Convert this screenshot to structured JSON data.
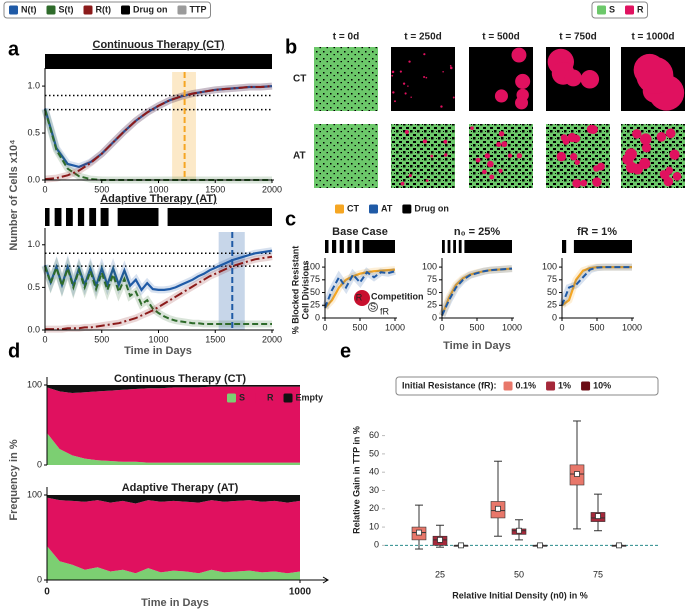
{
  "chart_data": [
    {
      "type": "line",
      "label": "a",
      "title": "Continuous Therapy (CT)",
      "ylabel": "Number of Cells x10⁴",
      "x": [
        0,
        100,
        200,
        300,
        400,
        500,
        600,
        700,
        800,
        900,
        1000,
        1100,
        1200,
        1300,
        1400,
        1500,
        1600,
        1700,
        1800,
        1900,
        2000
      ],
      "series": [
        {
          "name": "N(t)",
          "color": "#1f5aa6",
          "values": [
            0.76,
            0.34,
            0.17,
            0.14,
            0.19,
            0.28,
            0.4,
            0.52,
            0.63,
            0.72,
            0.79,
            0.85,
            0.89,
            0.92,
            0.94,
            0.96,
            0.97,
            0.98,
            0.99,
            0.99,
            1.0
          ]
        },
        {
          "name": "S(t)",
          "color": "#2e6b2a",
          "values": [
            0.75,
            0.32,
            0.12,
            0.04,
            0.01,
            0,
            0,
            0,
            0,
            0,
            0,
            0,
            0,
            0,
            0,
            0,
            0,
            0,
            0,
            0,
            0
          ]
        },
        {
          "name": "R(t)",
          "color": "#8b1a1a",
          "values": [
            0.01,
            0.02,
            0.05,
            0.1,
            0.18,
            0.28,
            0.4,
            0.52,
            0.63,
            0.72,
            0.79,
            0.85,
            0.89,
            0.92,
            0.94,
            0.96,
            0.97,
            0.98,
            0.99,
            0.99,
            1.0
          ]
        }
      ],
      "legend_extra": [
        {
          "name": "Drug on",
          "color": "#000000"
        },
        {
          "name": "TTP",
          "color": "#9a9a9a"
        }
      ],
      "drug_on": [
        [
          0,
          2000
        ]
      ],
      "hlines": [
        0.9,
        0.75
      ],
      "ttp": 1230,
      "ttp_band": [
        1120,
        1330
      ],
      "ttp_color": "#f5a623",
      "xlim": [
        0,
        2000
      ],
      "ylim": [
        0,
        1.15
      ],
      "xticks": [
        0,
        500,
        1000,
        1500,
        2000
      ],
      "yticks": [
        {
          "value": 0,
          "label": "0.0"
        },
        {
          "value": 0.5,
          "label": "0.5"
        },
        {
          "value": 1,
          "label": "1.0"
        }
      ]
    },
    {
      "type": "line",
      "title": "Adaptive Therapy (AT)",
      "xlabel": "Time in Days",
      "x": [
        0,
        50,
        100,
        150,
        200,
        250,
        300,
        350,
        400,
        450,
        500,
        550,
        600,
        650,
        700,
        750,
        800,
        850,
        900,
        950,
        1000,
        1050,
        1100,
        1150,
        1200,
        1250,
        1300,
        1350,
        1400,
        1450,
        1500,
        1550,
        1600,
        1650,
        1700,
        1750,
        1800,
        1850,
        1900,
        1950,
        2000
      ],
      "series": [
        {
          "color": "#1f5aa6",
          "values": [
            0.76,
            0.56,
            0.74,
            0.53,
            0.74,
            0.52,
            0.72,
            0.53,
            0.72,
            0.52,
            0.72,
            0.53,
            0.72,
            0.53,
            0.7,
            0.52,
            0.59,
            0.47,
            0.55,
            0.48,
            0.47,
            0.47,
            0.48,
            0.5,
            0.53,
            0.56,
            0.59,
            0.63,
            0.66,
            0.7,
            0.73,
            0.76,
            0.79,
            0.82,
            0.84,
            0.86,
            0.88,
            0.9,
            0.91,
            0.92,
            0.93
          ]
        },
        {
          "color": "#2e6b2a",
          "values": [
            0.75,
            0.55,
            0.73,
            0.52,
            0.72,
            0.5,
            0.7,
            0.5,
            0.69,
            0.48,
            0.67,
            0.47,
            0.65,
            0.45,
            0.6,
            0.4,
            0.45,
            0.3,
            0.35,
            0.25,
            0.2,
            0.16,
            0.13,
            0.11,
            0.1,
            0.09,
            0.08,
            0.08,
            0.07,
            0.07,
            0.07,
            0.07,
            0.07,
            0.07,
            0.07,
            0.07,
            0.07,
            0.07,
            0.07,
            0.07,
            0.07
          ]
        },
        {
          "color": "#8b1a1a",
          "values": [
            0.01,
            0.01,
            0.01,
            0.01,
            0.02,
            0.02,
            0.02,
            0.03,
            0.03,
            0.04,
            0.05,
            0.06,
            0.07,
            0.08,
            0.1,
            0.12,
            0.14,
            0.17,
            0.2,
            0.23,
            0.27,
            0.31,
            0.35,
            0.39,
            0.43,
            0.47,
            0.51,
            0.55,
            0.59,
            0.63,
            0.66,
            0.69,
            0.72,
            0.75,
            0.77,
            0.79,
            0.81,
            0.83,
            0.84,
            0.85,
            0.86
          ]
        }
      ],
      "drug_on": [
        [
          0,
          40
        ],
        [
          85,
          145
        ],
        [
          185,
          245
        ],
        [
          290,
          345
        ],
        [
          390,
          450
        ],
        [
          490,
          560
        ],
        [
          640,
          1000
        ],
        [
          1080,
          2000
        ]
      ],
      "hlines": [
        0.9,
        0.75
      ],
      "ttp": 1650,
      "ttp_band": [
        1530,
        1760
      ],
      "ttp_color": "#1f5aa6",
      "xlim": [
        0,
        2000
      ],
      "ylim": [
        0,
        1.15
      ],
      "xticks": [
        0,
        500,
        1000,
        1500,
        2000
      ],
      "yticks": [
        {
          "value": 0,
          "label": "0.0"
        },
        {
          "value": 0.5,
          "label": "0.5"
        },
        {
          "value": 1,
          "label": "1.0"
        }
      ]
    },
    {
      "type": "image-grid",
      "label": "b",
      "columns": [
        "t = 0d",
        "t = 250d",
        "t = 500d",
        "t = 750d",
        "t = 1000d"
      ],
      "rows": [
        "CT",
        "AT"
      ],
      "legend": [
        {
          "name": "S",
          "color": "#6cc86a"
        },
        {
          "name": "R",
          "color": "#e0115f"
        }
      ]
    },
    {
      "type": "line",
      "label": "c",
      "title": "Base Case",
      "ylabel": [
        "% Blocked Resistant",
        "Cell Divisions"
      ],
      "inset": {
        "text": "Competition",
        "cells": [
          "R",
          "S"
        ],
        "arrow": "fR"
      },
      "x": [
        0,
        100,
        200,
        300,
        400,
        500,
        600,
        700,
        800,
        900,
        1000
      ],
      "series": [
        {
          "name": "CT",
          "color": "#f5a623",
          "values": [
            20,
            35,
            60,
            75,
            82,
            87,
            90,
            92,
            93,
            94,
            95
          ]
        },
        {
          "name": "AT",
          "color": "#1f5aa6",
          "values": [
            20,
            55,
            80,
            60,
            85,
            70,
            90,
            80,
            90,
            88,
            92
          ]
        }
      ],
      "legend_extra": [
        {
          "name": "Drug on",
          "color": "#000000"
        }
      ],
      "drug_on": [
        [
          0,
          50
        ],
        [
          100,
          160
        ],
        [
          210,
          270
        ],
        [
          320,
          380
        ],
        [
          430,
          490
        ],
        [
          540,
          1000
        ]
      ],
      "xlim": [
        0,
        1000
      ],
      "ylim": [
        0,
        110
      ],
      "xticks": [
        0,
        500,
        1000
      ],
      "yticks": [
        0,
        25,
        50,
        75,
        100
      ]
    },
    {
      "type": "line",
      "title": "n₀ = 25%",
      "xlabel": "Time in Days",
      "x": [
        0,
        100,
        200,
        300,
        400,
        500,
        600,
        700,
        800,
        900,
        1000
      ],
      "series": [
        {
          "color": "#f5a623",
          "values": [
            5,
            40,
            65,
            78,
            85,
            89,
            92,
            94,
            95,
            96,
            97
          ]
        },
        {
          "color": "#1f5aa6",
          "values": [
            5,
            35,
            60,
            75,
            84,
            88,
            92,
            94,
            95,
            96,
            97
          ]
        }
      ],
      "drug_on": [
        [
          0,
          40
        ],
        [
          80,
          120
        ],
        [
          160,
          200
        ],
        [
          240,
          280
        ],
        [
          320,
          1000
        ]
      ],
      "xlim": [
        0,
        1000
      ],
      "ylim": [
        0,
        110
      ],
      "xticks": [
        0,
        500,
        1000
      ],
      "yticks": [
        0,
        25,
        50,
        75,
        100
      ]
    },
    {
      "type": "line",
      "title": "fR = 1%",
      "x": [
        0,
        100,
        200,
        300,
        400,
        500,
        600,
        700,
        800,
        900,
        1000
      ],
      "series": [
        {
          "color": "#f5a623",
          "values": [
            25,
            35,
            75,
            93,
            98,
            100,
            100,
            100,
            100,
            100,
            100
          ]
        },
        {
          "color": "#1f5aa6",
          "values": [
            25,
            60,
            65,
            80,
            95,
            99,
            100,
            100,
            100,
            100,
            100
          ]
        }
      ],
      "drug_on": [
        [
          0,
          60
        ],
        [
          170,
          1000
        ]
      ],
      "xlim": [
        0,
        1000
      ],
      "ylim": [
        0,
        110
      ],
      "xticks": [
        0,
        500,
        1000
      ],
      "yticks": [
        0,
        25,
        50,
        75,
        100
      ]
    },
    {
      "type": "stacked-area",
      "label": "d",
      "title": "Continuous Therapy (CT)",
      "ylabel": "Frequency in %",
      "x": [
        0,
        50,
        100,
        150,
        200,
        250,
        300,
        350,
        400,
        450,
        500,
        550,
        600,
        650,
        700,
        750,
        800,
        850,
        900,
        950,
        1000
      ],
      "series": [
        {
          "name": "S",
          "color": "#7ccf72",
          "values": [
            40,
            20,
            12,
            8,
            6,
            5,
            4,
            4,
            3,
            3,
            3,
            3,
            3,
            3,
            3,
            3,
            3,
            3,
            3,
            3,
            3
          ]
        },
        {
          "name": "R",
          "color": "#e0115f",
          "values": [
            57,
            72,
            78,
            83,
            86,
            88,
            90,
            91,
            93,
            93,
            94,
            94,
            94,
            95,
            95,
            95,
            95,
            95,
            95,
            95,
            95
          ]
        },
        {
          "name": "Empty",
          "color": "#111111",
          "values": [
            3,
            8,
            10,
            9,
            8,
            7,
            6,
            5,
            4,
            4,
            3,
            3,
            3,
            2,
            2,
            2,
            2,
            2,
            2,
            2,
            2
          ]
        }
      ],
      "xlim": [
        0,
        1000
      ],
      "ylim": [
        0,
        100
      ],
      "yticks": [
        0,
        100
      ]
    },
    {
      "type": "stacked-area",
      "title": "Adaptive Therapy (AT)",
      "xlabel": "Time in Days",
      "x": [
        0,
        50,
        100,
        150,
        200,
        250,
        300,
        350,
        400,
        450,
        500,
        550,
        600,
        650,
        700,
        750,
        800,
        850,
        900,
        950,
        1000
      ],
      "series": [
        {
          "color": "#7ccf72",
          "values": [
            40,
            22,
            18,
            12,
            15,
            10,
            12,
            8,
            14,
            9,
            11,
            10,
            8,
            12,
            9,
            10,
            11,
            9,
            10,
            8,
            10
          ]
        },
        {
          "color": "#e0115f",
          "values": [
            57,
            72,
            75,
            80,
            79,
            81,
            81,
            82,
            80,
            83,
            82,
            82,
            83,
            82,
            83,
            83,
            83,
            83,
            83,
            83,
            83
          ]
        },
        {
          "color": "#111111",
          "values": [
            3,
            6,
            7,
            8,
            6,
            9,
            7,
            10,
            6,
            8,
            7,
            8,
            9,
            6,
            8,
            7,
            6,
            8,
            7,
            9,
            7
          ]
        }
      ],
      "xlim": [
        0,
        1000
      ],
      "ylim": [
        0,
        100
      ],
      "xticks": [
        0,
        1000
      ],
      "yticks": [
        0,
        100
      ]
    },
    {
      "type": "box",
      "label": "e",
      "legend_title": "Initial Resistance (fR):",
      "ylabel": "Relative Gain in TTP in %",
      "xlabel": "Relative Initial Density (n0) in %",
      "categories": [
        "25",
        "50",
        "75"
      ],
      "series": [
        {
          "name": "0.1%",
          "color": "#e8776a",
          "values": [
            {
              "min": -2,
              "q1": 3,
              "median": 7,
              "q3": 10,
              "max": 22,
              "mean": 7
            },
            {
              "min": 5,
              "q1": 15,
              "median": 19,
              "q3": 24,
              "max": 46,
              "mean": 20
            },
            {
              "min": 9,
              "q1": 33,
              "median": 39,
              "q3": 44,
              "max": 68,
              "mean": 39
            }
          ]
        },
        {
          "name": "1%",
          "color": "#a5283a",
          "values": [
            {
              "min": -1,
              "q1": 0,
              "median": 3,
              "q3": 5,
              "max": 11,
              "mean": 3
            },
            {
              "min": 3,
              "q1": 6,
              "median": 8,
              "q3": 9,
              "max": 14,
              "mean": 8
            },
            {
              "min": 8,
              "q1": 13,
              "median": 15,
              "q3": 18,
              "max": 28,
              "mean": 16
            }
          ]
        },
        {
          "name": "10%",
          "color": "#6b0c15",
          "values": [
            {
              "min": 0,
              "q1": 0,
              "median": 0,
              "q3": 0,
              "max": 0,
              "mean": 0
            },
            {
              "min": 0,
              "q1": 0,
              "median": 0,
              "q3": 0,
              "max": 0,
              "mean": 0
            },
            {
              "min": 0,
              "q1": 0,
              "median": 0,
              "q3": 0,
              "max": 0,
              "mean": 0
            }
          ]
        }
      ],
      "hline": 0,
      "ylim": [
        -8,
        74
      ],
      "yticks": [
        0,
        10,
        20,
        30,
        40,
        50,
        60
      ]
    }
  ]
}
